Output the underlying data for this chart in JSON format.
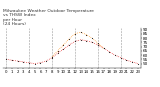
{
  "title": "Milwaukee Weather Outdoor Temperature\nvs THSW Index\nper Hour\n(24 Hours)",
  "hours": [
    0,
    1,
    2,
    3,
    4,
    5,
    6,
    7,
    8,
    9,
    10,
    11,
    12,
    13,
    14,
    15,
    16,
    17,
    18,
    19,
    20,
    21,
    22,
    23
  ],
  "temp": [
    55,
    54,
    53,
    52,
    51,
    50,
    51,
    53,
    57,
    62,
    67,
    72,
    76,
    78,
    77,
    75,
    72,
    68,
    64,
    60,
    57,
    54,
    52,
    50
  ],
  "thsw": [
    null,
    null,
    null,
    null,
    null,
    null,
    null,
    null,
    58,
    65,
    72,
    79,
    85,
    87,
    84,
    80,
    74,
    68,
    null,
    null,
    null,
    null,
    null,
    null
  ],
  "temp_color": "#dd0000",
  "thsw_color": "#ff8800",
  "dot_color": "#111111",
  "bg_color": "#ffffff",
  "grid_color": "#999999",
  "ylim": [
    45,
    92
  ],
  "yticks": [
    50,
    55,
    60,
    65,
    70,
    75,
    80,
    85,
    90
  ],
  "grid_hours": [
    0,
    4,
    8,
    12,
    16,
    20
  ],
  "ylabel_fontsize": 3.0,
  "xlabel_fontsize": 2.8,
  "title_fontsize": 3.2
}
